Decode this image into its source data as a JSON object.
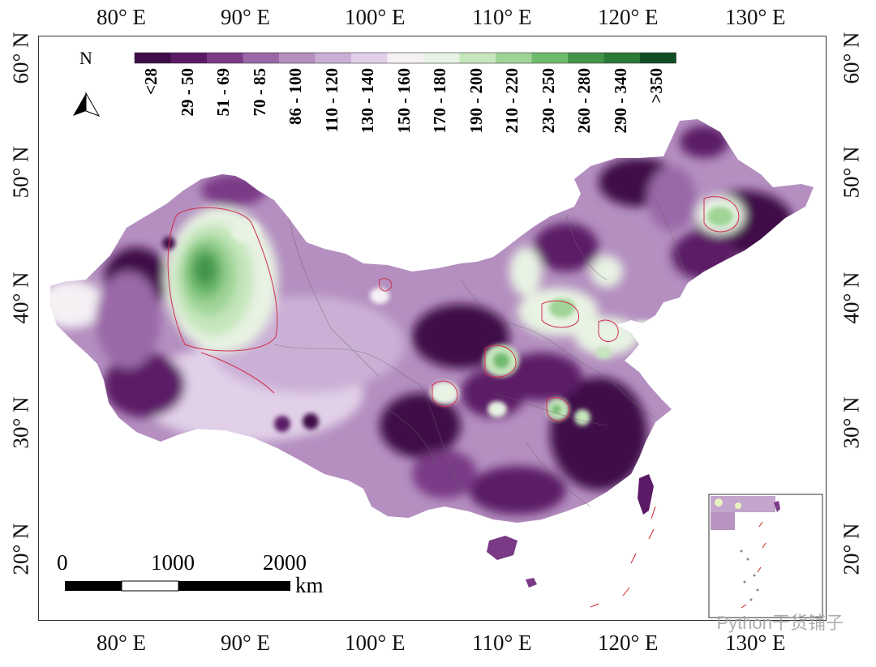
{
  "axes": {
    "lon_ticks": [
      "80° E",
      "90° E",
      "100° E",
      "110° E",
      "120° E",
      "130° E"
    ],
    "lat_ticks": [
      "60° N",
      "50° N",
      "40° N",
      "30° N",
      "20° N"
    ]
  },
  "legend": {
    "labels": [
      "<28",
      "29 - 50",
      "51 - 69",
      "70 - 85",
      "86 - 100",
      "110 - 120",
      "130 - 140",
      "150 - 160",
      "170 - 180",
      "190 - 200",
      "210 - 220",
      "230 - 250",
      "260 - 280",
      "290 - 340",
      ">350"
    ],
    "colors": [
      "#3f0d4a",
      "#5b1a66",
      "#7a3a86",
      "#9a67a8",
      "#b48fc0",
      "#cbb0d6",
      "#e1d0e8",
      "#f4f0f4",
      "#e8f3e3",
      "#c6e6bd",
      "#9fd496",
      "#70ba6e",
      "#43954a",
      "#2b7a37",
      "#114d23"
    ]
  },
  "north_arrow": {
    "label": "N"
  },
  "scale_bar": {
    "labels": [
      "0",
      "1000",
      "2000"
    ],
    "unit": "km"
  },
  "watermark": "Python干货铺子"
}
